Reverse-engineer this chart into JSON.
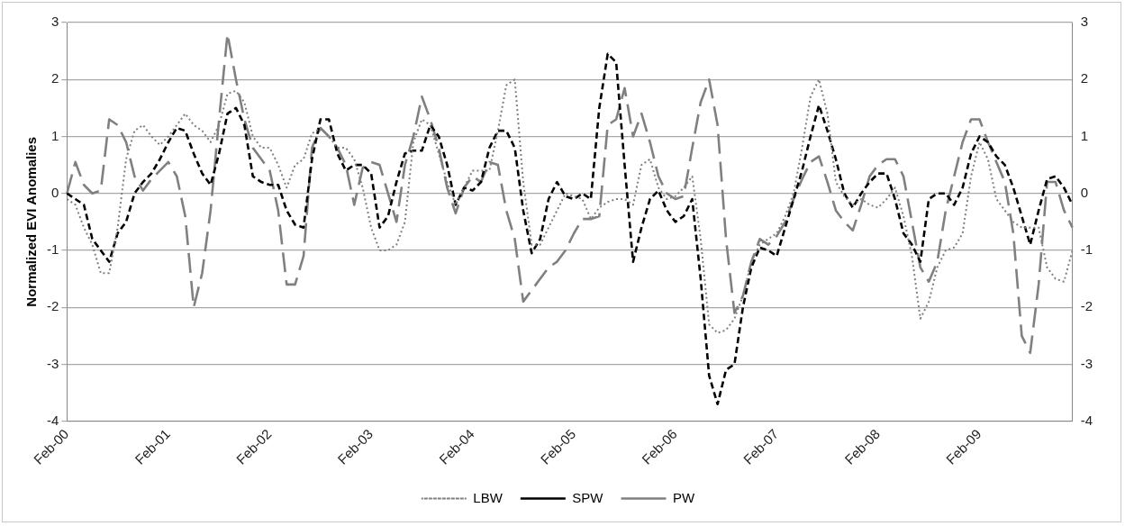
{
  "chart_data": {
    "type": "line",
    "ylabel": "Normalized EVI Anomalies",
    "categories": [
      "Feb-00",
      null,
      null,
      null,
      null,
      null,
      null,
      null,
      null,
      null,
      null,
      null,
      "Feb-01",
      null,
      null,
      null,
      null,
      null,
      null,
      null,
      null,
      null,
      null,
      null,
      "Feb-02",
      null,
      null,
      null,
      null,
      null,
      null,
      null,
      null,
      null,
      null,
      null,
      "Feb-03",
      null,
      null,
      null,
      null,
      null,
      null,
      null,
      null,
      null,
      null,
      null,
      "Feb-04",
      null,
      null,
      null,
      null,
      null,
      null,
      null,
      null,
      null,
      null,
      null,
      "Feb-05",
      null,
      null,
      null,
      null,
      null,
      null,
      null,
      null,
      null,
      null,
      null,
      "Feb-06",
      null,
      null,
      null,
      null,
      null,
      null,
      null,
      null,
      null,
      null,
      null,
      "Feb-07",
      null,
      null,
      null,
      null,
      null,
      null,
      null,
      null,
      null,
      null,
      null,
      "Feb-08",
      null,
      null,
      null,
      null,
      null,
      null,
      null,
      null,
      null,
      null,
      null,
      "Feb-09",
      null,
      null,
      null,
      null,
      null,
      null,
      null,
      null,
      null,
      null,
      null
    ],
    "series": [
      {
        "name": "LBW",
        "color": "#7f7f7f",
        "line_style": "dotted",
        "values": [
          -0.1,
          -0.2,
          -0.6,
          -0.9,
          -1.4,
          -1.4,
          -0.6,
          0.6,
          1.1,
          1.2,
          1.0,
          0.85,
          1.0,
          1.2,
          1.4,
          1.2,
          1.1,
          0.9,
          1.2,
          1.75,
          1.8,
          1.6,
          1.0,
          0.8,
          0.8,
          0.5,
          0.1,
          0.5,
          0.6,
          1.05,
          1.15,
          1.0,
          0.8,
          0.8,
          0.6,
          0.1,
          -0.6,
          -1.0,
          -1.0,
          -0.9,
          -0.5,
          0.9,
          1.3,
          1.2,
          0.7,
          0.2,
          -0.2,
          0.1,
          0.4,
          0.4,
          0.4,
          1.1,
          1.9,
          2.0,
          0.2,
          -0.9,
          -0.9,
          -0.6,
          -0.3,
          0,
          -0.05,
          -0.1,
          -0.45,
          -0.25,
          -0.15,
          -0.1,
          -0.1,
          -0.2,
          0.5,
          0.6,
          0.1,
          -0.1,
          -0.05,
          0.1,
          0.3,
          -0.8,
          -2.3,
          -2.45,
          -2.4,
          -2.2,
          -1.8,
          -1.2,
          -0.9,
          -0.8,
          -0.7,
          -0.4,
          0.0,
          0.8,
          1.7,
          2.0,
          1.4,
          0.2,
          -0.05,
          -0.2,
          -0.1,
          -0.2,
          -0.25,
          -0.1,
          0.1,
          -0.4,
          -1.1,
          -2.2,
          -1.9,
          -1.3,
          -1.0,
          -0.95,
          -0.7,
          0.3,
          0.9,
          0.6,
          -0.1,
          -0.3,
          -0.5,
          -0.6,
          -0.6,
          -0.6,
          -1.3,
          -1.5,
          -1.55,
          -1.0
        ]
      },
      {
        "name": "SPW",
        "color": "#000000",
        "line_style": "dashed",
        "values": [
          0,
          -0.1,
          -0.2,
          -0.8,
          -1.0,
          -1.2,
          -0.7,
          -0.5,
          0,
          0.2,
          0.35,
          0.6,
          0.9,
          1.15,
          1.1,
          0.7,
          0.35,
          0.15,
          0.7,
          1.4,
          1.5,
          1.2,
          0.3,
          0.2,
          0.15,
          0.15,
          -0.3,
          -0.55,
          -0.6,
          0.6,
          1.3,
          1.3,
          0.7,
          0.4,
          0.5,
          0.5,
          0.35,
          -0.6,
          -0.4,
          0.2,
          0.7,
          0.75,
          0.75,
          1.2,
          1.0,
          0.5,
          -0.2,
          0.1,
          0.05,
          0.2,
          0.8,
          1.1,
          1.1,
          0.8,
          -0.3,
          -1.05,
          -0.8,
          -0.1,
          0.2,
          -0.05,
          -0.1,
          0,
          -0.1,
          1.5,
          2.45,
          2.3,
          0.5,
          -1.2,
          -0.6,
          -0.1,
          0.05,
          -0.3,
          -0.5,
          -0.4,
          -0.1,
          -1.5,
          -3.2,
          -3.7,
          -3.1,
          -3.0,
          -2.0,
          -1.3,
          -0.95,
          -1.0,
          -1.1,
          -0.6,
          -0.1,
          0.4,
          1.0,
          1.55,
          1.1,
          0.6,
          0.0,
          -0.25,
          0,
          0.2,
          0.35,
          0.35,
          -0.1,
          -0.7,
          -0.9,
          -1.2,
          -0.1,
          0,
          0,
          -0.2,
          0.1,
          0.7,
          1.0,
          0.9,
          0.65,
          0.5,
          0.1,
          -0.4,
          -0.9,
          -0.3,
          0.25,
          0.3,
          0.1,
          -0.2
        ]
      },
      {
        "name": "PW",
        "color": "#808080",
        "line_style": "dashed",
        "values": [
          0,
          0.55,
          0.15,
          0,
          0.05,
          1.3,
          1.2,
          0.9,
          0.3,
          0.05,
          0.25,
          0.4,
          0.55,
          0.3,
          -0.4,
          -2.0,
          -1.4,
          -0.3,
          1.3,
          2.8,
          2.0,
          1.3,
          0.8,
          0.6,
          0.4,
          -0.3,
          -1.6,
          -1.6,
          -1.1,
          0.8,
          1.15,
          1.0,
          0.8,
          0.5,
          -0.2,
          0.45,
          0.55,
          0.5,
          0,
          -0.5,
          0.5,
          1.0,
          1.7,
          1.3,
          0.8,
          0.1,
          -0.35,
          0.1,
          0.3,
          0.2,
          0.55,
          0.5,
          -0.3,
          -0.8,
          -1.9,
          -1.7,
          -1.5,
          -1.3,
          -1.2,
          -1.0,
          -0.7,
          -0.45,
          -0.45,
          -0.4,
          1.2,
          1.3,
          1.85,
          1.0,
          1.4,
          0.9,
          0.3,
          0,
          -0.1,
          -0.05,
          0.8,
          1.6,
          2.0,
          1.2,
          -0.8,
          -2.1,
          -1.8,
          -1.2,
          -0.8,
          -0.9,
          -0.75,
          -0.5,
          -0.1,
          0.25,
          0.55,
          0.65,
          0.2,
          -0.3,
          -0.5,
          -0.65,
          -0.2,
          0.3,
          0.5,
          0.6,
          0.6,
          0.3,
          -0.5,
          -1.3,
          -1.55,
          -1.2,
          -0.3,
          0.3,
          0.9,
          1.3,
          1.3,
          0.9,
          0.55,
          0.2,
          -0.7,
          -2.5,
          -2.8,
          -1.6,
          0.2,
          0.2,
          -0.3,
          -0.6
        ]
      }
    ],
    "ylim": [
      -4,
      3
    ],
    "yticks": [
      -4,
      -3,
      -2,
      -1,
      0,
      1,
      2,
      3
    ],
    "y2lim": [
      -4,
      3
    ],
    "y2ticks": [
      -4,
      -3,
      -2,
      -1,
      0,
      1,
      2,
      3
    ],
    "grid": "y",
    "legend": "bottom",
    "marker": "none"
  }
}
